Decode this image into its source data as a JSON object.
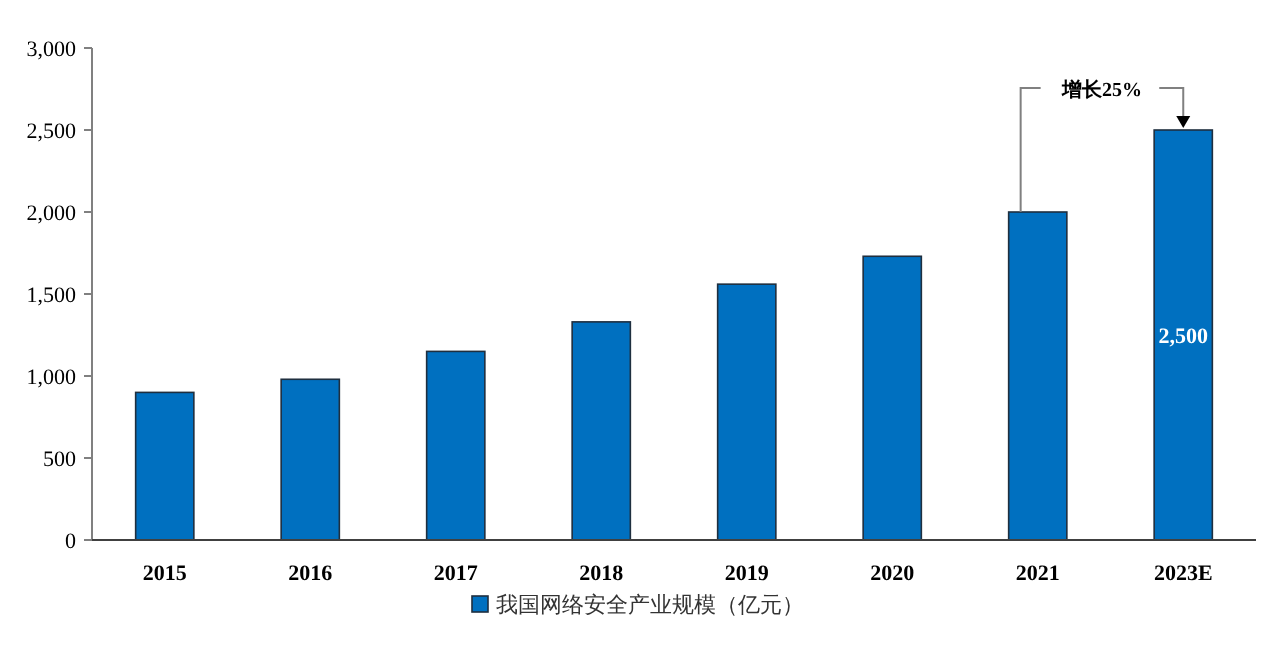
{
  "chart_data": {
    "type": "bar",
    "categories": [
      "2015",
      "2016",
      "2017",
      "2018",
      "2019",
      "2020",
      "2021",
      "2023E"
    ],
    "series": [
      {
        "name": "我国网络安全产业规模（亿元）",
        "color": "#0070c0",
        "values": [
          900,
          980,
          1150,
          1330,
          1560,
          1730,
          2000,
          2500
        ],
        "value_labels": [
          null,
          null,
          null,
          null,
          null,
          null,
          null,
          "2,500"
        ]
      }
    ],
    "ylim": [
      0,
      3000
    ],
    "yticks": [
      {
        "value": 0,
        "label": "0"
      },
      {
        "value": 500,
        "label": "500"
      },
      {
        "value": 1000,
        "label": "1,000"
      },
      {
        "value": 1500,
        "label": "1,500"
      },
      {
        "value": 2000,
        "label": "2,000"
      },
      {
        "value": 2500,
        "label": "2,500"
      },
      {
        "value": 3000,
        "label": "3,000"
      }
    ],
    "annotations": [
      {
        "text": "增长25%",
        "x": "2023E",
        "y": 2500
      }
    ],
    "grid": false,
    "legend": "bottom"
  }
}
